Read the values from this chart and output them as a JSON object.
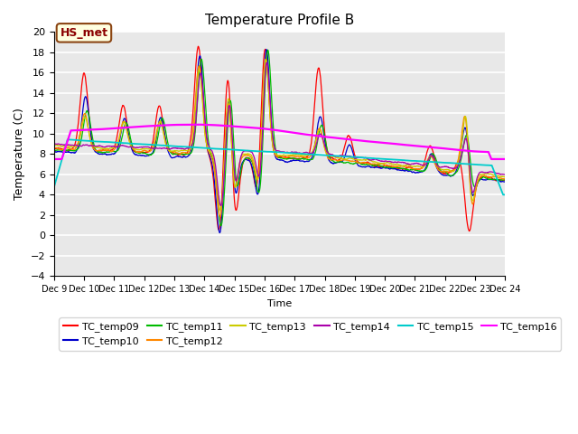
{
  "title": "Temperature Profile B",
  "xlabel": "Time",
  "ylabel": "Temperature (C)",
  "ylim": [
    -4,
    20
  ],
  "annotation_text": "HS_met",
  "annotation_bbox_facecolor": "#ffffe0",
  "annotation_bbox_edgecolor": "#8B4513",
  "series_colors": {
    "TC_temp09": "#ff0000",
    "TC_temp10": "#0000cc",
    "TC_temp11": "#00bb00",
    "TC_temp12": "#ff8800",
    "TC_temp13": "#cccc00",
    "TC_temp14": "#aa00aa",
    "TC_temp15": "#00cccc",
    "TC_temp16": "#ff00ff"
  },
  "plot_bg_color": "#e8e8e8",
  "fig_bg_color": "#ffffff",
  "grid_color": "#ffffff",
  "title_fontsize": 11,
  "tick_fontsize": 7,
  "ylabel_fontsize": 9,
  "xlabel_fontsize": 8,
  "legend_fontsize": 8
}
